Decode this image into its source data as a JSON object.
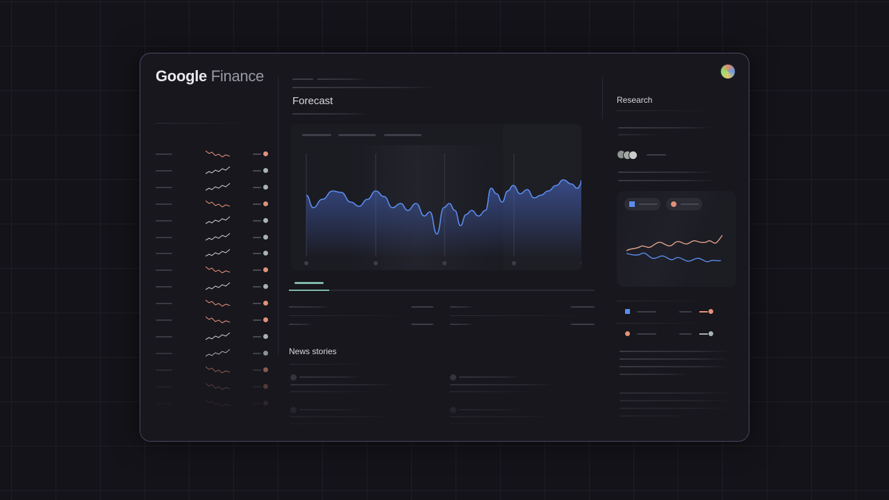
{
  "app": {
    "logo_primary": "Google",
    "logo_secondary": "Finance"
  },
  "main": {
    "forecast_title": "Forecast",
    "news_title": "News stories"
  },
  "research": {
    "title": "Research"
  },
  "colors": {
    "accent_blue": "#5b8def",
    "negative": "#e3917a",
    "positive": "#a7b4b0",
    "tab_active": "#7fb8a8"
  },
  "watchlist": {
    "trends": [
      "down",
      "up",
      "up",
      "down",
      "up",
      "up",
      "up",
      "down",
      "up",
      "down",
      "down",
      "up",
      "up",
      "down",
      "down",
      "down"
    ]
  },
  "icons": {
    "profile": "avatar-icon"
  }
}
